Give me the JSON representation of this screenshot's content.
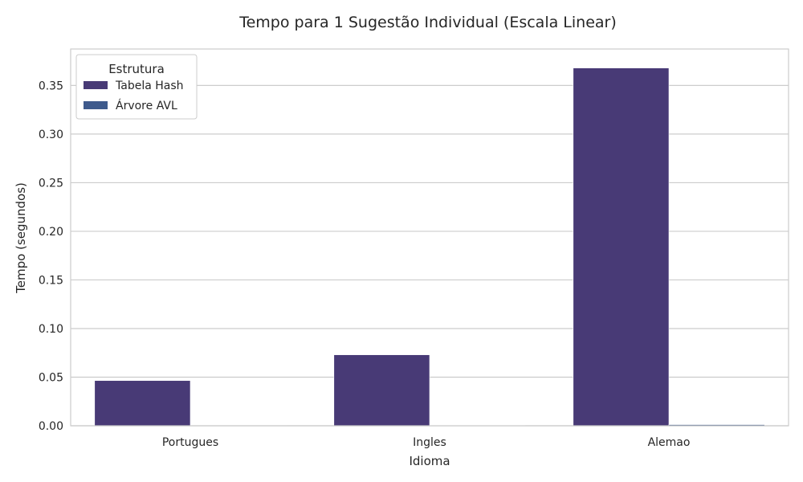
{
  "chart_data": {
    "type": "bar",
    "title": "Tempo para 1 Sugestão Individual (Escala Linear)",
    "xlabel": "Idioma",
    "ylabel": "Tempo (segundos)",
    "categories": [
      "Portugues",
      "Ingles",
      "Alemao"
    ],
    "series": [
      {
        "name": "Tabela Hash",
        "values": [
          0.0465,
          0.073,
          0.368
        ],
        "color": "#483a76"
      },
      {
        "name": "Árvore AVL",
        "values": [
          0.0003,
          0.0004,
          0.0012
        ],
        "color": "#3e5a8c"
      }
    ],
    "ylim": [
      0,
      0.3875
    ],
    "yticks": [
      "0.00",
      "0.05",
      "0.10",
      "0.15",
      "0.20",
      "0.25",
      "0.30",
      "0.35"
    ],
    "legend": {
      "title": "Estrutura",
      "position": "top-left"
    },
    "grid": "horizontal"
  }
}
